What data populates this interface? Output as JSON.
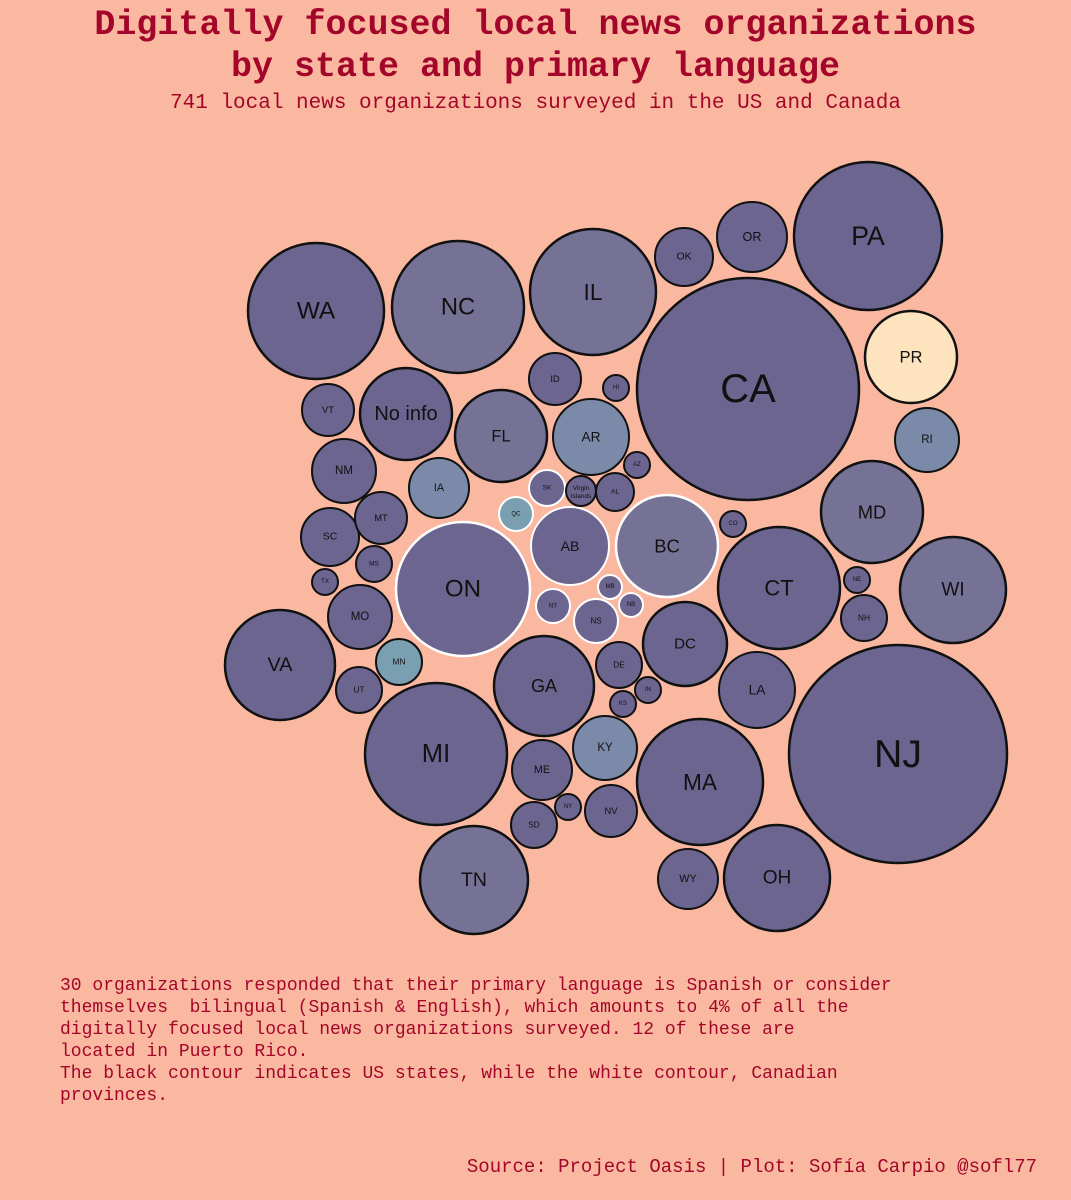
{
  "header": {
    "title_lines": [
      "Digitally focused local news organizations",
      "by state and primary language"
    ],
    "subtitle": "741 local news organizations surveyed in the US and Canada"
  },
  "chart_data": {
    "type": "bubble",
    "legend": "none",
    "grid": false,
    "colors": {
      "english": "#6b6590",
      "english_light": "#757296",
      "bilingual_mixed": "#7b8aa8",
      "mostly_bilingual": "#7a9fb0",
      "spanish": "#fde3be",
      "us_stroke": "#111111",
      "canada_stroke": "#ffffff"
    },
    "bubbles": [
      {
        "label": "CA",
        "country": "US",
        "tone": "english"
      },
      {
        "label": "NJ",
        "country": "US",
        "tone": "english"
      },
      {
        "label": "PA",
        "country": "US",
        "tone": "english"
      },
      {
        "label": "WA",
        "country": "US",
        "tone": "english"
      },
      {
        "label": "NC",
        "country": "US",
        "tone": "english_light"
      },
      {
        "label": "IL",
        "country": "US",
        "tone": "english_light"
      },
      {
        "label": "MI",
        "country": "US",
        "tone": "english"
      },
      {
        "label": "MA",
        "country": "US",
        "tone": "english"
      },
      {
        "label": "CT",
        "country": "US",
        "tone": "english"
      },
      {
        "label": "ON",
        "country": "CA",
        "tone": "english"
      },
      {
        "label": "TN",
        "country": "US",
        "tone": "english_light"
      },
      {
        "label": "OH",
        "country": "US",
        "tone": "english"
      },
      {
        "label": "VA",
        "country": "US",
        "tone": "english"
      },
      {
        "label": "WI",
        "country": "US",
        "tone": "english_light"
      },
      {
        "label": "BC",
        "country": "CA",
        "tone": "english_light"
      },
      {
        "label": "MD",
        "country": "US",
        "tone": "english_light"
      },
      {
        "label": "GA",
        "country": "US",
        "tone": "english"
      },
      {
        "label": "FL",
        "country": "US",
        "tone": "english_light"
      },
      {
        "label": "No info",
        "country": "US",
        "tone": "english"
      },
      {
        "label": "DC",
        "country": "US",
        "tone": "english"
      },
      {
        "label": "PR",
        "country": "US",
        "tone": "spanish"
      },
      {
        "label": "AB",
        "country": "CA",
        "tone": "english"
      },
      {
        "label": "AR",
        "country": "US",
        "tone": "bilingual_mixed"
      },
      {
        "label": "LA",
        "country": "US",
        "tone": "english"
      },
      {
        "label": "OR",
        "country": "US",
        "tone": "english"
      },
      {
        "label": "KY",
        "country": "US",
        "tone": "bilingual_mixed"
      },
      {
        "label": "NM",
        "country": "US",
        "tone": "english"
      },
      {
        "label": "MO",
        "country": "US",
        "tone": "english"
      },
      {
        "label": "RI",
        "country": "US",
        "tone": "bilingual_mixed"
      },
      {
        "label": "ME",
        "country": "US",
        "tone": "english"
      },
      {
        "label": "IA",
        "country": "US",
        "tone": "bilingual_mixed"
      },
      {
        "label": "SC",
        "country": "US",
        "tone": "english"
      },
      {
        "label": "OK",
        "country": "US",
        "tone": "english"
      },
      {
        "label": "WY",
        "country": "US",
        "tone": "english"
      },
      {
        "label": "ID",
        "country": "US",
        "tone": "english"
      },
      {
        "label": "VT",
        "country": "US",
        "tone": "english"
      },
      {
        "label": "MT",
        "country": "US",
        "tone": "english"
      },
      {
        "label": "NV",
        "country": "US",
        "tone": "english"
      },
      {
        "label": "DE",
        "country": "US",
        "tone": "english"
      },
      {
        "label": "MN",
        "country": "US",
        "tone": "mostly_bilingual"
      },
      {
        "label": "UT",
        "country": "US",
        "tone": "english"
      },
      {
        "label": "SD",
        "country": "US",
        "tone": "english"
      },
      {
        "label": "NS",
        "country": "CA",
        "tone": "english"
      },
      {
        "label": "NH",
        "country": "US",
        "tone": "english"
      },
      {
        "label": "AL",
        "country": "US",
        "tone": "english"
      },
      {
        "label": "SK",
        "country": "CA",
        "tone": "english"
      },
      {
        "label": "MS",
        "country": "US",
        "tone": "english"
      },
      {
        "label": "NT",
        "country": "CA",
        "tone": "english"
      },
      {
        "label": "QC",
        "country": "CA",
        "tone": "mostly_bilingual"
      },
      {
        "label": "Virgin Islands",
        "country": "US",
        "tone": "english"
      },
      {
        "label": "NE",
        "country": "US",
        "tone": "english"
      },
      {
        "label": "HI",
        "country": "US",
        "tone": "english"
      },
      {
        "label": "IN",
        "country": "US",
        "tone": "english"
      },
      {
        "label": "KS",
        "country": "US",
        "tone": "english"
      },
      {
        "label": "AZ",
        "country": "US",
        "tone": "english"
      },
      {
        "label": "MB",
        "country": "CA",
        "tone": "english"
      },
      {
        "label": "NB",
        "country": "CA",
        "tone": "english"
      },
      {
        "label": "CO",
        "country": "US",
        "tone": "english"
      },
      {
        "label": "NY",
        "country": "US",
        "tone": "english"
      },
      {
        "label": "TX",
        "country": "US",
        "tone": "english"
      }
    ]
  },
  "note_lines": [
    "30 organizations responded that their primary language is Spanish or consider",
    "themselves  bilingual (Spanish & English), which amounts to 4% of all the",
    "digitally focused local news organizations surveyed. 12 of these are",
    "located in Puerto Rico.",
    "The black contour indicates US states, while the white contour, Canadian",
    "provinces."
  ],
  "source": "Source: Project Oasis | Plot: Sofía Carpio @sofl77"
}
